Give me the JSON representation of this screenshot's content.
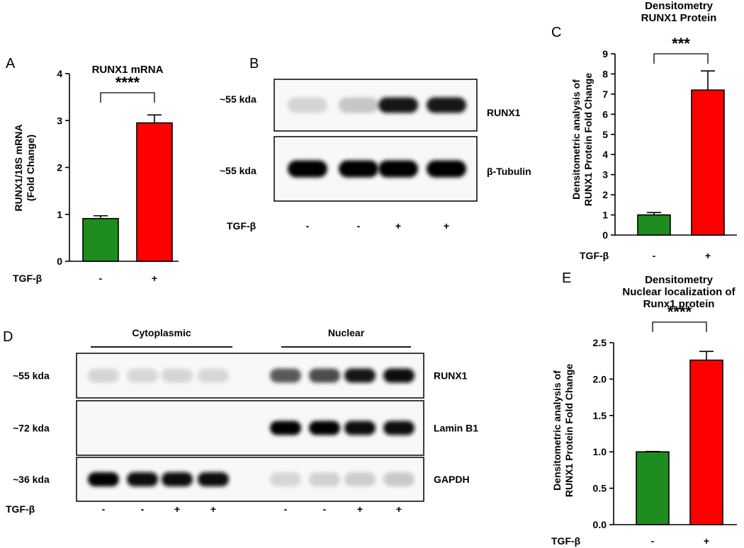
{
  "chart_data": [
    {
      "panel": "A",
      "type": "bar",
      "title": "RUNX1 mRNA",
      "ylabel": "RUNX1/18S mRNA\n(Fold Change)",
      "row_label": "TGF-β",
      "categories": [
        "-",
        "+"
      ],
      "values": [
        0.91,
        2.95
      ],
      "errors": [
        0.06,
        0.17
      ],
      "colors": [
        "#1e8c1e",
        "#ff0000"
      ],
      "ylim": [
        0,
        4
      ],
      "yticks": [
        "0",
        "1",
        "2",
        "3",
        "4"
      ],
      "significance": "****"
    },
    {
      "panel": "C",
      "type": "bar",
      "title": "Densitometry\nRUNX1 Protein",
      "ylabel": "Densitometric analysis of\nRUNX1 Protein Fold Change",
      "row_label": "TGF-β",
      "categories": [
        "-",
        "+"
      ],
      "values": [
        1.0,
        7.2
      ],
      "errors": [
        0.12,
        0.95
      ],
      "colors": [
        "#1e8c1e",
        "#ff0000"
      ],
      "ylim": [
        0,
        9
      ],
      "yticks": [
        "0",
        "1",
        "2",
        "3",
        "4",
        "5",
        "6",
        "7",
        "8",
        "9"
      ],
      "significance": "***"
    },
    {
      "panel": "E",
      "type": "bar",
      "title": "Densitometry\nNuclear localization of\nRunx1 protein",
      "ylabel": "Densitometric analysis of\nRUNX1 Protein Fold Change",
      "row_label": "TGF-β",
      "categories": [
        "-",
        "+"
      ],
      "values": [
        1.0,
        2.26
      ],
      "errors": [
        0.005,
        0.12
      ],
      "colors": [
        "#1e8c1e",
        "#ff0000"
      ],
      "ylim": [
        0,
        2.5
      ],
      "yticks": [
        "0.0",
        "0.5",
        "1.0",
        "1.5",
        "2.0",
        "2.5"
      ],
      "significance": "****"
    }
  ],
  "blot_b": {
    "panel": "B",
    "row_label": "TGF-β",
    "lanes": [
      "-",
      "-",
      "+",
      "+"
    ],
    "rows": [
      {
        "size": "~55 kda",
        "protein": "RUNX1",
        "intensity": [
          0.06,
          0.14,
          0.85,
          0.88
        ]
      },
      {
        "size": "~55 kda",
        "protein": "β-Tubulin",
        "intensity": [
          1,
          1,
          1,
          1
        ]
      }
    ]
  },
  "blot_d": {
    "panel": "D",
    "groups": [
      "Cytoplasmic",
      "Nuclear"
    ],
    "row_label": "TGF-β",
    "lanes": [
      "-",
      "-",
      "+",
      "+",
      "-",
      "-",
      "+",
      "+"
    ],
    "rows": [
      {
        "size": "~55 kda",
        "protein": "RUNX1",
        "intensity": [
          0.05,
          0.04,
          0.05,
          0.04,
          0.6,
          0.65,
          0.85,
          0.9
        ]
      },
      {
        "size": "~72 kda",
        "protein": "Lamin B1",
        "intensity": [
          0,
          0,
          0,
          0,
          1,
          1,
          0.95,
          0.95
        ]
      },
      {
        "size": "~36 kda",
        "protein": "GAPDH",
        "intensity": [
          1,
          0.95,
          0.95,
          0.9,
          0.05,
          0.08,
          0.1,
          0.12
        ]
      }
    ]
  }
}
